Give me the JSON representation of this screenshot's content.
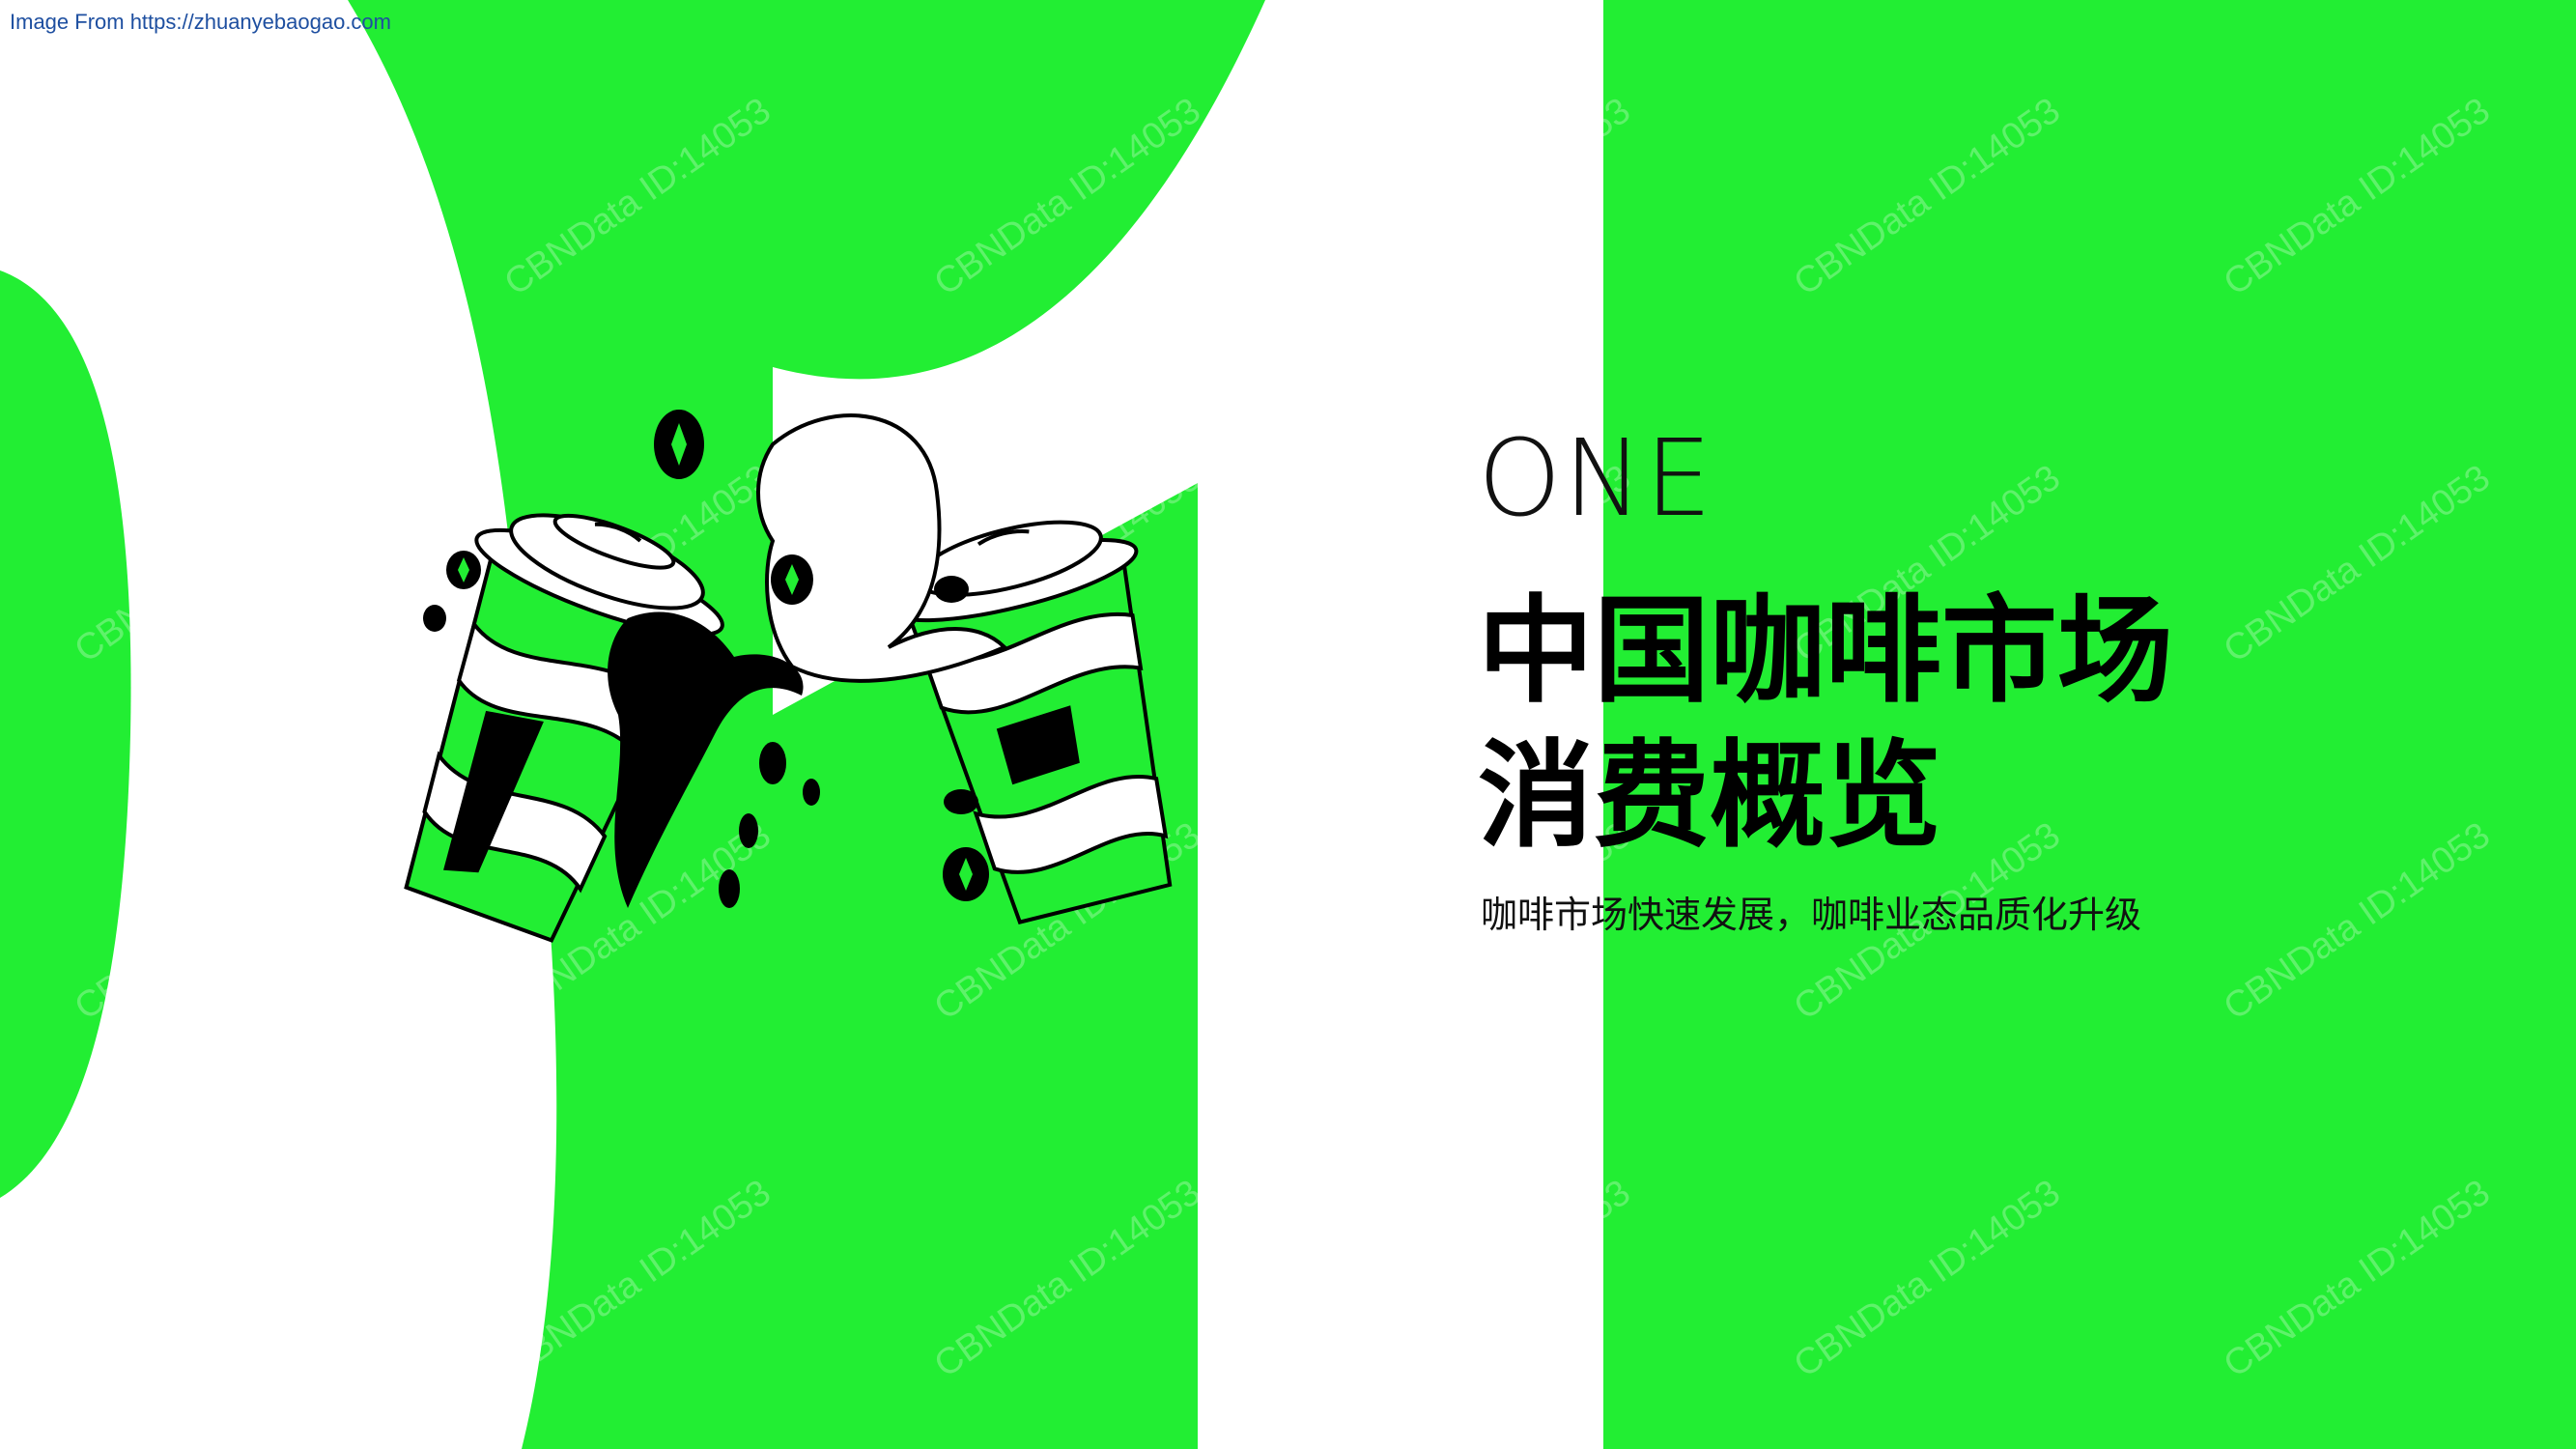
{
  "source_note": "Image From https://zhuanyebaogao.com",
  "section": {
    "number_label": "ONE",
    "title_line1": "中国咖啡市场",
    "title_line2": "消费概览",
    "subtitle": "咖啡市场快速发展，咖啡业态品质化升级"
  },
  "watermark": "CBNData ID:14053",
  "colors": {
    "accent": "#22ee33",
    "background": "#ffffff",
    "text": "#000000"
  },
  "illustration": "two-coffee-cups-splash"
}
